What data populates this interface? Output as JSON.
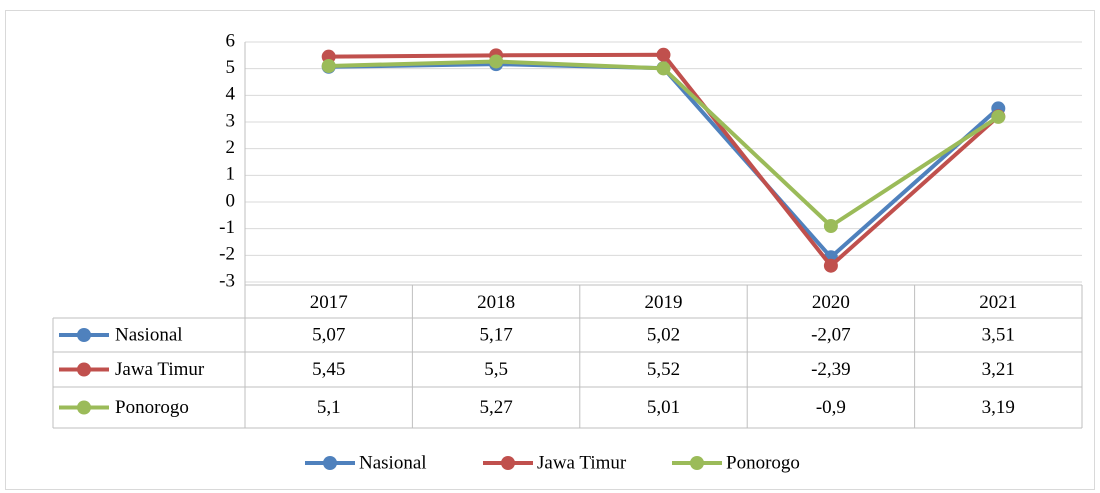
{
  "chart_data": {
    "type": "line",
    "categories": [
      "2017",
      "2018",
      "2019",
      "2020",
      "2021"
    ],
    "series": [
      {
        "name": "Nasional",
        "color": "#4f81bd",
        "values": [
          5.07,
          5.17,
          5.02,
          -2.07,
          3.51
        ],
        "value_labels": [
          "5,07",
          "5,17",
          "5,02",
          "-2,07",
          "3,51"
        ]
      },
      {
        "name": "Jawa Timur",
        "color": "#c0504d",
        "values": [
          5.45,
          5.5,
          5.52,
          -2.39,
          3.21
        ],
        "value_labels": [
          "5,45",
          "5,5",
          "5,52",
          "-2,39",
          "3,21"
        ]
      },
      {
        "name": "Ponorogo",
        "color": "#9bbb59",
        "values": [
          5.1,
          5.27,
          5.01,
          -0.9,
          3.19
        ],
        "value_labels": [
          "5,1",
          "5,27",
          "5,01",
          "-0,9",
          "3,19"
        ]
      }
    ],
    "ylim": [
      -3,
      6
    ],
    "yticks": [
      -3,
      -2,
      -1,
      0,
      1,
      2,
      3,
      4,
      5,
      6
    ],
    "grid": true,
    "legend": "bottom",
    "data_table": true
  }
}
